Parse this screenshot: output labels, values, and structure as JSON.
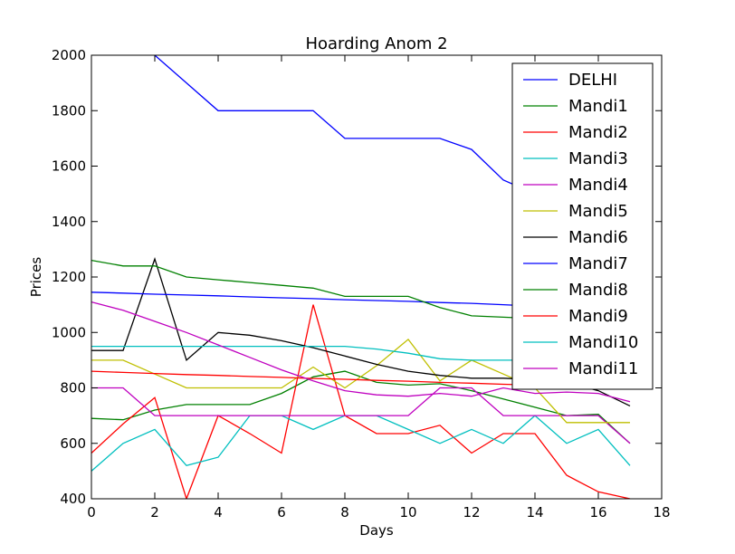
{
  "chart_data": {
    "type": "line",
    "title": "Hoarding Anom 2",
    "xlabel": "Days",
    "ylabel": "Prices",
    "xlim": [
      0,
      18
    ],
    "ylim": [
      400,
      2000
    ],
    "xticks": [
      0,
      2,
      4,
      6,
      8,
      10,
      12,
      14,
      16,
      18
    ],
    "yticks": [
      400,
      600,
      800,
      1000,
      1200,
      1400,
      1600,
      1800,
      2000
    ],
    "grid": false,
    "legend_position": "top-right",
    "x": [
      0,
      1,
      2,
      3,
      4,
      5,
      6,
      7,
      8,
      9,
      10,
      11,
      12,
      13,
      14,
      15,
      16,
      17
    ],
    "series": [
      {
        "name": "DELHI",
        "color": "#0000ff",
        "values": [
          null,
          null,
          2000,
          1900,
          1800,
          1800,
          1800,
          1800,
          1700,
          1700,
          1700,
          1700,
          1660,
          1550,
          1500,
          1450,
          1400,
          1350
        ]
      },
      {
        "name": "Mandi1",
        "color": "#008000",
        "values": [
          690,
          685,
          720,
          740,
          740,
          740,
          780,
          840,
          860,
          820,
          810,
          815,
          790,
          760,
          730,
          700,
          705,
          600
        ]
      },
      {
        "name": "Mandi2",
        "color": "#ff0000",
        "values": [
          565,
          670,
          765,
          400,
          700,
          635,
          565,
          1100,
          700,
          635,
          635,
          665,
          565,
          635,
          635,
          485,
          425,
          400
        ]
      },
      {
        "name": "Mandi3",
        "color": "#00bfbf",
        "values": [
          500,
          600,
          650,
          520,
          550,
          700,
          700,
          650,
          700,
          700,
          650,
          600,
          650,
          600,
          700,
          600,
          650,
          520
        ]
      },
      {
        "name": "Mandi4",
        "color": "#bf00bf",
        "values": [
          800,
          800,
          700,
          700,
          700,
          700,
          700,
          700,
          700,
          700,
          700,
          800,
          800,
          700,
          700,
          700,
          700,
          600
        ]
      },
      {
        "name": "Mandi5",
        "color": "#bfbf00",
        "values": [
          900,
          900,
          850,
          800,
          800,
          800,
          800,
          875,
          800,
          880,
          975,
          825,
          900,
          850,
          800,
          675,
          675,
          675
        ]
      },
      {
        "name": "Mandi6",
        "color": "#000000",
        "values": [
          935,
          935,
          1265,
          900,
          1000,
          990,
          970,
          945,
          915,
          885,
          860,
          845,
          835,
          835,
          830,
          820,
          790,
          735
        ]
      },
      {
        "name": "Mandi7",
        "color": "#0000ff",
        "values": [
          1145,
          1142,
          1138,
          1135,
          1132,
          1128,
          1125,
          1122,
          1118,
          1115,
          1112,
          1108,
          1105,
          1100,
          1095,
          1090,
          1085,
          1080
        ]
      },
      {
        "name": "Mandi8",
        "color": "#008000",
        "values": [
          1260,
          1240,
          1240,
          1200,
          1190,
          1180,
          1170,
          1160,
          1130,
          1130,
          1130,
          1090,
          1060,
          1055,
          1050,
          1045,
          1040,
          1035
        ]
      },
      {
        "name": "Mandi9",
        "color": "#ff0000",
        "values": [
          860,
          856,
          852,
          848,
          845,
          841,
          838,
          834,
          831,
          827,
          824,
          820,
          817,
          813,
          810,
          806,
          803,
          800
        ]
      },
      {
        "name": "Mandi10",
        "color": "#00bfbf",
        "values": [
          950,
          950,
          950,
          950,
          950,
          950,
          950,
          950,
          950,
          940,
          925,
          905,
          900,
          900,
          900,
          890,
          880,
          870
        ]
      },
      {
        "name": "Mandi11",
        "color": "#bf00bf",
        "values": [
          1110,
          1080,
          1040,
          1000,
          955,
          910,
          865,
          825,
          790,
          775,
          770,
          780,
          770,
          800,
          780,
          785,
          780,
          750
        ]
      }
    ]
  }
}
